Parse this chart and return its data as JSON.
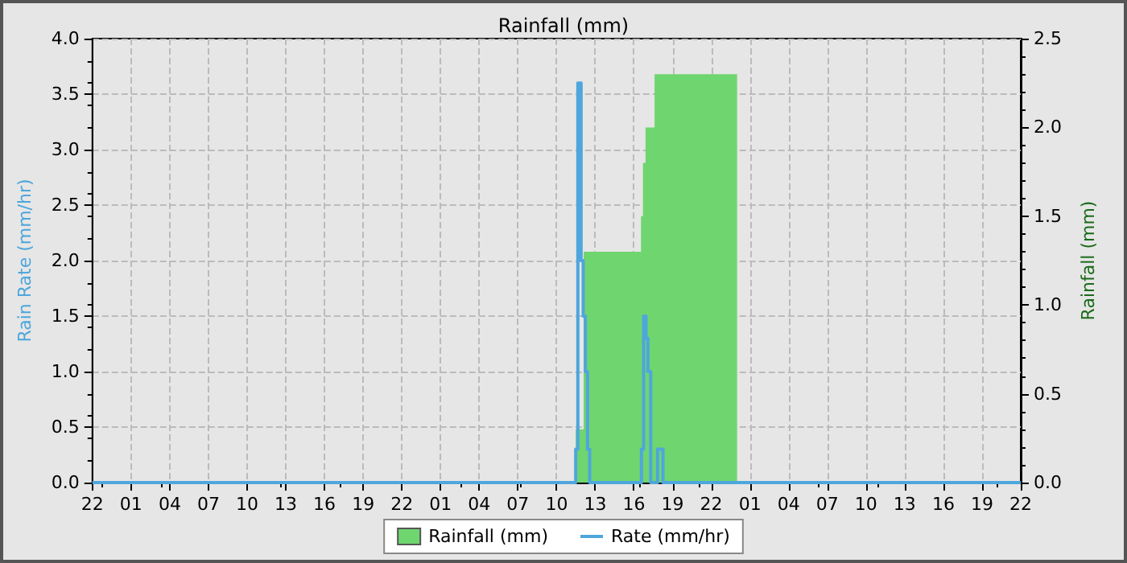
{
  "chart_data": {
    "type": "step",
    "title": "Rainfall (mm)",
    "ylabel": "Rain Rate (mm/hr)",
    "y2label": "Rainfall (mm)",
    "xlim": [
      "--01-01T22:00",
      "--01-04T22:00"
    ],
    "xticks": [
      {
        "value": "--01-01T22:00",
        "label": "22"
      },
      {
        "value": "--01-02T01:00",
        "label": "01"
      },
      {
        "value": "--01-02T04:00",
        "label": "04"
      },
      {
        "value": "--01-02T07:00",
        "label": "07"
      },
      {
        "value": "--01-02T10:00",
        "label": "10"
      },
      {
        "value": "--01-02T13:00",
        "label": "13"
      },
      {
        "value": "--01-02T16:00",
        "label": "16"
      },
      {
        "value": "--01-02T19:00",
        "label": "19"
      },
      {
        "value": "--01-02T22:00",
        "label": "22"
      },
      {
        "value": "--01-03T01:00",
        "label": "01"
      },
      {
        "value": "--01-03T04:00",
        "label": "04"
      },
      {
        "value": "--01-03T07:00",
        "label": "07"
      },
      {
        "value": "--01-03T10:00",
        "label": "10"
      },
      {
        "value": "--01-03T13:00",
        "label": "13"
      },
      {
        "value": "--01-03T16:00",
        "label": "16"
      },
      {
        "value": "--01-03T19:00",
        "label": "19"
      },
      {
        "value": "--01-03T22:00",
        "label": "22"
      },
      {
        "value": "--01-04T01:00",
        "label": "01"
      },
      {
        "value": "--01-04T04:00",
        "label": "04"
      },
      {
        "value": "--01-04T07:00",
        "label": "07"
      },
      {
        "value": "--01-04T10:00",
        "label": "10"
      },
      {
        "value": "--01-04T13:00",
        "label": "13"
      },
      {
        "value": "--01-04T16:00",
        "label": "16"
      },
      {
        "value": "--01-04T19:00",
        "label": "19"
      },
      {
        "value": "--01-04T22:00",
        "label": "22"
      }
    ],
    "ylim": [
      0,
      4
    ],
    "yticks": [
      {
        "value": 0,
        "label": "0.0"
      },
      {
        "value": 0.5,
        "label": "0.5"
      },
      {
        "value": 1,
        "label": "1.0"
      },
      {
        "value": 1.5,
        "label": "1.5"
      },
      {
        "value": 2,
        "label": "2.0"
      },
      {
        "value": 2.5,
        "label": "2.5"
      },
      {
        "value": 3,
        "label": "3.0"
      },
      {
        "value": 3.5,
        "label": "3.5"
      },
      {
        "value": 4,
        "label": "4.0"
      }
    ],
    "y2lim": [
      0,
      2.5
    ],
    "y2ticks": [
      {
        "value": 0,
        "label": "0.0"
      },
      {
        "value": 0.5,
        "label": "0.5"
      },
      {
        "value": 1,
        "label": "1.0"
      },
      {
        "value": 1.5,
        "label": "1.5"
      },
      {
        "value": 2,
        "label": "2.0"
      },
      {
        "value": 2.5,
        "label": "2.5"
      }
    ],
    "series": [
      {
        "name": "Rainfall (mm)",
        "type": "area",
        "axis": "y2",
        "color": "#6fd56f",
        "x": [
          "--01-03T11:29",
          "--01-03T12:06",
          "--01-03T16:33",
          "--01-03T16:42",
          "--01-03T16:54",
          "--01-03T17:36",
          "--01-04T00:00"
        ],
        "values": [
          0.3,
          1.3,
          1.5,
          1.8,
          2.0,
          2.3,
          2.3
        ]
      },
      {
        "name": "Rate (mm/hr)",
        "color": "#4ea6dc",
        "x": [
          "--01-01T22:00",
          "--01-03T11:29",
          "--01-03T11:39",
          "--01-03T11:54",
          "--01-03T12:04",
          "--01-03T12:14",
          "--01-03T12:24",
          "--01-03T12:34",
          "--01-03T16:35",
          "--01-03T16:45",
          "--01-03T16:56",
          "--01-03T17:05",
          "--01-03T17:18",
          "--01-03T17:50",
          "--01-03T18:15",
          "--01-04T22:00"
        ],
        "values": [
          0,
          0.3,
          3.6,
          2.0,
          1.5,
          1.0,
          0.3,
          0,
          0.3,
          1.5,
          1.3,
          1.0,
          0,
          0.3,
          0,
          0
        ]
      }
    ],
    "grid": true,
    "legend": "bottom"
  }
}
